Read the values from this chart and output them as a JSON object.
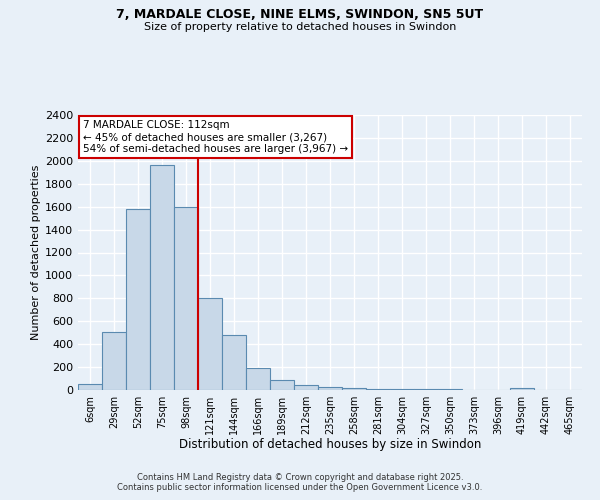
{
  "title1": "7, MARDALE CLOSE, NINE ELMS, SWINDON, SN5 5UT",
  "title2": "Size of property relative to detached houses in Swindon",
  "xlabel": "Distribution of detached houses by size in Swindon",
  "ylabel": "Number of detached properties",
  "categories": [
    "6sqm",
    "29sqm",
    "52sqm",
    "75sqm",
    "98sqm",
    "121sqm",
    "144sqm",
    "166sqm",
    "189sqm",
    "212sqm",
    "235sqm",
    "258sqm",
    "281sqm",
    "304sqm",
    "327sqm",
    "350sqm",
    "373sqm",
    "396sqm",
    "419sqm",
    "442sqm",
    "465sqm"
  ],
  "values": [
    50,
    510,
    1580,
    1960,
    1600,
    800,
    480,
    190,
    90,
    40,
    25,
    20,
    10,
    5,
    5,
    5,
    0,
    0,
    20,
    0,
    0
  ],
  "bar_color": "#c8d8e8",
  "bar_edge_color": "#5a8ab0",
  "vline_x_index": 5.0,
  "vline_color": "#cc0000",
  "annotation_text": "7 MARDALE CLOSE: 112sqm\n← 45% of detached houses are smaller (3,267)\n54% of semi-detached houses are larger (3,967) →",
  "annotation_box_color": "#cc0000",
  "bg_color": "#e8f0f8",
  "grid_color": "#ffffff",
  "ylim": [
    0,
    2400
  ],
  "yticks": [
    0,
    200,
    400,
    600,
    800,
    1000,
    1200,
    1400,
    1600,
    1800,
    2000,
    2200,
    2400
  ],
  "footer1": "Contains HM Land Registry data © Crown copyright and database right 2025.",
  "footer2": "Contains public sector information licensed under the Open Government Licence v3.0."
}
